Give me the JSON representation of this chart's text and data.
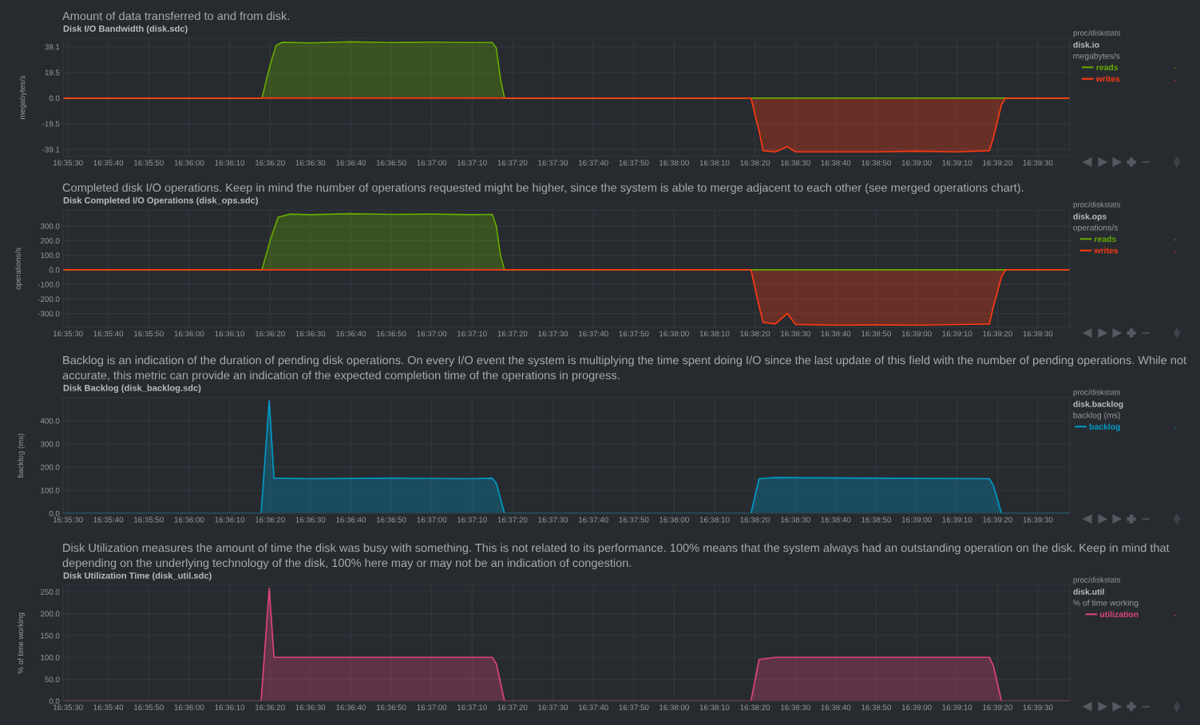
{
  "chart_data": [
    {
      "type": "area",
      "subtitle": "Amount of data transferred to and from disk.",
      "title": "Disk I/O Bandwidth (disk.sdc)",
      "ylabel": "megabytes/s",
      "legend_title": "megabytes/s",
      "legend": "right",
      "grid": true,
      "annotations": [
        "proc/diskstats",
        "disk.io",
        "-",
        "-"
      ],
      "xlim": [
        16.59133,
        16.66053
      ],
      "ylim": [
        -44.5,
        45.5
      ],
      "yticks": [
        {
          "value": 39.1,
          "label": "39.1"
        },
        {
          "value": 19.5,
          "label": "19.5"
        },
        {
          "value": 0,
          "label": "0.0"
        },
        {
          "value": -19.5,
          "label": "-19.5"
        },
        {
          "value": -39.1,
          "label": "-39.1"
        }
      ],
      "xticks": [
        {
          "value": 16.59167,
          "label": "16:35:30"
        },
        {
          "value": 16.59444,
          "label": "16:35:40"
        },
        {
          "value": 16.59722,
          "label": "16:35:50"
        },
        {
          "value": 16.6,
          "label": "16:36:00"
        },
        {
          "value": 16.60278,
          "label": "16:36:10"
        },
        {
          "value": 16.60556,
          "label": "16:36:20"
        },
        {
          "value": 16.60833,
          "label": "16:36:30"
        },
        {
          "value": 16.61111,
          "label": "16:36:40"
        },
        {
          "value": 16.61389,
          "label": "16:36:50"
        },
        {
          "value": 16.61667,
          "label": "16:37:00"
        },
        {
          "value": 16.61944,
          "label": "16:37:10"
        },
        {
          "value": 16.62222,
          "label": "16:37:20"
        },
        {
          "value": 16.625,
          "label": "16:37:30"
        },
        {
          "value": 16.62778,
          "label": "16:37:40"
        },
        {
          "value": 16.63056,
          "label": "16:37:50"
        },
        {
          "value": 16.63333,
          "label": "16:38:00"
        },
        {
          "value": 16.63611,
          "label": "16:38:10"
        },
        {
          "value": 16.63889,
          "label": "16:38:20"
        },
        {
          "value": 16.64167,
          "label": "16:38:30"
        },
        {
          "value": 16.64444,
          "label": "16:38:40"
        },
        {
          "value": 16.64722,
          "label": "16:38:50"
        },
        {
          "value": 16.65,
          "label": "16:39:00"
        },
        {
          "value": 16.65278,
          "label": "16:39:10"
        },
        {
          "value": 16.65556,
          "label": "16:39:20"
        },
        {
          "value": 16.65833,
          "label": "16:39:30"
        }
      ],
      "series": [
        {
          "name": "reads",
          "color": "#66aa00",
          "x": [
            16.59133,
            16.605,
            16.60556,
            16.60597,
            16.60639,
            16.60833,
            16.61111,
            16.61389,
            16.61667,
            16.61944,
            16.62083,
            16.62111,
            16.62139,
            16.62167,
            16.66053
          ],
          "values": [
            0,
            0,
            25,
            40,
            42.5,
            42,
            42.8,
            42.3,
            42.6,
            42.3,
            42.3,
            38,
            15,
            0,
            0
          ]
        },
        {
          "name": "writes",
          "color": "#fe3912",
          "x": [
            16.59133,
            16.63861,
            16.63917,
            16.63944,
            16.64028,
            16.64111,
            16.64167,
            16.64444,
            16.64722,
            16.65,
            16.65278,
            16.655,
            16.65528,
            16.65583,
            16.65611,
            16.66053
          ],
          "values": [
            0,
            0,
            -25,
            -40,
            -41,
            -37,
            -41,
            -41,
            -41,
            -40.5,
            -41,
            -40,
            -30,
            -5,
            0,
            0
          ]
        }
      ]
    },
    {
      "type": "area",
      "subtitle": "Completed disk I/O operations. Keep in mind the number of operations requested might be higher, since the system is able to merge adjacent to each other (see merged operations chart).",
      "title": "Disk Completed I/O Operations (disk_ops.sdc)",
      "ylabel": "operations/s",
      "legend_title": "operations/s",
      "legend": "right",
      "grid": true,
      "annotations": [
        "proc/diskstats",
        "disk.ops",
        "-",
        "-"
      ],
      "xlim": [
        16.59133,
        16.66053
      ],
      "ylim": [
        -395,
        410
      ],
      "yticks": [
        {
          "value": 300,
          "label": "300.0"
        },
        {
          "value": 200,
          "label": "200.0"
        },
        {
          "value": 100,
          "label": "100.0"
        },
        {
          "value": 0,
          "label": "0.0"
        },
        {
          "value": -100,
          "label": "-100.0"
        },
        {
          "value": -200,
          "label": "-200.0"
        },
        {
          "value": -300,
          "label": "-300.0"
        }
      ],
      "xticks": [
        {
          "value": 16.59167,
          "label": "16:35:30"
        },
        {
          "value": 16.59444,
          "label": "16:35:40"
        },
        {
          "value": 16.59722,
          "label": "16:35:50"
        },
        {
          "value": 16.6,
          "label": "16:36:00"
        },
        {
          "value": 16.60278,
          "label": "16:36:10"
        },
        {
          "value": 16.60556,
          "label": "16:36:20"
        },
        {
          "value": 16.60833,
          "label": "16:36:30"
        },
        {
          "value": 16.61111,
          "label": "16:36:40"
        },
        {
          "value": 16.61389,
          "label": "16:36:50"
        },
        {
          "value": 16.61667,
          "label": "16:37:00"
        },
        {
          "value": 16.61944,
          "label": "16:37:10"
        },
        {
          "value": 16.62222,
          "label": "16:37:20"
        },
        {
          "value": 16.625,
          "label": "16:37:30"
        },
        {
          "value": 16.62778,
          "label": "16:37:40"
        },
        {
          "value": 16.63056,
          "label": "16:37:50"
        },
        {
          "value": 16.63333,
          "label": "16:38:00"
        },
        {
          "value": 16.63611,
          "label": "16:38:10"
        },
        {
          "value": 16.63889,
          "label": "16:38:20"
        },
        {
          "value": 16.64167,
          "label": "16:38:30"
        },
        {
          "value": 16.64444,
          "label": "16:38:40"
        },
        {
          "value": 16.64722,
          "label": "16:38:50"
        },
        {
          "value": 16.65,
          "label": "16:39:00"
        },
        {
          "value": 16.65278,
          "label": "16:39:10"
        },
        {
          "value": 16.65556,
          "label": "16:39:20"
        },
        {
          "value": 16.65833,
          "label": "16:39:30"
        }
      ],
      "series": [
        {
          "name": "reads",
          "color": "#66aa00",
          "x": [
            16.59133,
            16.605,
            16.60556,
            16.60611,
            16.60694,
            16.60833,
            16.61111,
            16.61389,
            16.61667,
            16.61944,
            16.62083,
            16.62111,
            16.62139,
            16.62167,
            16.66053
          ],
          "values": [
            0,
            0,
            200,
            360,
            382,
            378,
            385,
            380,
            382,
            378,
            380,
            300,
            100,
            0,
            0
          ]
        },
        {
          "name": "writes",
          "color": "#fe3912",
          "x": [
            16.59133,
            16.63861,
            16.63917,
            16.63944,
            16.64028,
            16.64111,
            16.64167,
            16.64444,
            16.64722,
            16.65,
            16.65278,
            16.655,
            16.65528,
            16.65583,
            16.65611,
            16.66053
          ],
          "values": [
            0,
            0,
            -250,
            -360,
            -372,
            -300,
            -375,
            -380,
            -378,
            -380,
            -376,
            -372,
            -250,
            -50,
            0,
            0
          ]
        }
      ]
    },
    {
      "type": "area",
      "subtitle": "Backlog is an indication of the duration of pending disk operations. On every I/O event the system is multiplying the time spent doing I/O since the last update of this field with the number of pending operations. While not accurate, this metric can provide an indication of the expected completion time of the operations in progress.",
      "title": "Disk Backlog (disk_backlog.sdc)",
      "ylabel": "backlog (ms)",
      "legend_title": "backlog (ms)",
      "legend": "right",
      "grid": true,
      "annotations": [
        "proc/diskstats",
        "disk.backlog",
        "-"
      ],
      "xlim": [
        16.59133,
        16.66053
      ],
      "ylim": [
        0,
        500
      ],
      "yticks": [
        {
          "value": 0,
          "label": "0.0"
        },
        {
          "value": 100,
          "label": "100.0"
        },
        {
          "value": 200,
          "label": "200.0"
        },
        {
          "value": 300,
          "label": "300.0"
        },
        {
          "value": 400,
          "label": "400.0"
        }
      ],
      "xticks": [
        {
          "value": 16.59167,
          "label": "16:35:30"
        },
        {
          "value": 16.59444,
          "label": "16:35:40"
        },
        {
          "value": 16.59722,
          "label": "16:35:50"
        },
        {
          "value": 16.6,
          "label": "16:36:00"
        },
        {
          "value": 16.60278,
          "label": "16:36:10"
        },
        {
          "value": 16.60556,
          "label": "16:36:20"
        },
        {
          "value": 16.60833,
          "label": "16:36:30"
        },
        {
          "value": 16.61111,
          "label": "16:36:40"
        },
        {
          "value": 16.61389,
          "label": "16:36:50"
        },
        {
          "value": 16.61667,
          "label": "16:37:00"
        },
        {
          "value": 16.61944,
          "label": "16:37:10"
        },
        {
          "value": 16.62222,
          "label": "16:37:20"
        },
        {
          "value": 16.625,
          "label": "16:37:30"
        },
        {
          "value": 16.62778,
          "label": "16:37:40"
        },
        {
          "value": 16.63056,
          "label": "16:37:50"
        },
        {
          "value": 16.63333,
          "label": "16:38:00"
        },
        {
          "value": 16.63611,
          "label": "16:38:10"
        },
        {
          "value": 16.63889,
          "label": "16:38:20"
        },
        {
          "value": 16.64167,
          "label": "16:38:30"
        },
        {
          "value": 16.64444,
          "label": "16:38:40"
        },
        {
          "value": 16.64722,
          "label": "16:38:50"
        },
        {
          "value": 16.65,
          "label": "16:39:00"
        },
        {
          "value": 16.65278,
          "label": "16:39:10"
        },
        {
          "value": 16.65556,
          "label": "16:39:20"
        },
        {
          "value": 16.65833,
          "label": "16:39:30"
        }
      ],
      "series": [
        {
          "name": "backlog",
          "color": "#0099c6",
          "x": [
            16.59133,
            16.60494,
            16.6055,
            16.60583,
            16.60833,
            16.61389,
            16.61944,
            16.62083,
            16.62111,
            16.62167,
            16.63861,
            16.63917,
            16.64028,
            16.64722,
            16.655,
            16.65528,
            16.65583,
            16.66053
          ],
          "values": [
            0,
            0,
            486,
            152,
            150,
            152,
            150,
            152,
            130,
            0,
            0,
            150,
            155,
            152,
            150,
            120,
            0,
            0
          ]
        }
      ]
    },
    {
      "type": "area",
      "subtitle": "Disk Utilization measures the amount of time the disk was busy with something. This is not related to its performance. 100% means that the system always had an outstanding operation on the disk. Keep in mind that depending on the underlying technology of the disk, 100% here may or may not be an indication of congestion.",
      "title": "Disk Utilization Time (disk_util.sdc)",
      "ylabel": "% of time working",
      "legend_title": "% of time working",
      "legend": "right",
      "grid": true,
      "annotations": [
        "proc/diskstats",
        "disk.util",
        "-"
      ],
      "xlim": [
        16.59133,
        16.66053
      ],
      "ylim": [
        0,
        265
      ],
      "yticks": [
        {
          "value": 0,
          "label": "0.0"
        },
        {
          "value": 50,
          "label": "50.0"
        },
        {
          "value": 100,
          "label": "100.0"
        },
        {
          "value": 150,
          "label": "150.0"
        },
        {
          "value": 200,
          "label": "200.0"
        },
        {
          "value": 250,
          "label": "250.0"
        }
      ],
      "xticks": [
        {
          "value": 16.59167,
          "label": "16:35:30"
        },
        {
          "value": 16.59444,
          "label": "16:35:40"
        },
        {
          "value": 16.59722,
          "label": "16:35:50"
        },
        {
          "value": 16.6,
          "label": "16:36:00"
        },
        {
          "value": 16.60278,
          "label": "16:36:10"
        },
        {
          "value": 16.60556,
          "label": "16:36:20"
        },
        {
          "value": 16.60833,
          "label": "16:36:30"
        },
        {
          "value": 16.61111,
          "label": "16:36:40"
        },
        {
          "value": 16.61389,
          "label": "16:36:50"
        },
        {
          "value": 16.61667,
          "label": "16:37:00"
        },
        {
          "value": 16.61944,
          "label": "16:37:10"
        },
        {
          "value": 16.62222,
          "label": "16:37:20"
        },
        {
          "value": 16.625,
          "label": "16:37:30"
        },
        {
          "value": 16.62778,
          "label": "16:37:40"
        },
        {
          "value": 16.63056,
          "label": "16:37:50"
        },
        {
          "value": 16.63333,
          "label": "16:38:00"
        },
        {
          "value": 16.63611,
          "label": "16:38:10"
        },
        {
          "value": 16.63889,
          "label": "16:38:20"
        },
        {
          "value": 16.64167,
          "label": "16:38:30"
        },
        {
          "value": 16.64444,
          "label": "16:38:40"
        },
        {
          "value": 16.64722,
          "label": "16:38:50"
        },
        {
          "value": 16.65,
          "label": "16:39:00"
        },
        {
          "value": 16.65278,
          "label": "16:39:10"
        },
        {
          "value": 16.65556,
          "label": "16:39:20"
        },
        {
          "value": 16.65833,
          "label": "16:39:30"
        }
      ],
      "series": [
        {
          "name": "utilization",
          "color": "#dd4477",
          "x": [
            16.59133,
            16.60494,
            16.6055,
            16.60583,
            16.60833,
            16.61389,
            16.61944,
            16.62083,
            16.62111,
            16.62167,
            16.63861,
            16.63917,
            16.64028,
            16.64722,
            16.655,
            16.65528,
            16.65583,
            16.66053
          ],
          "values": [
            0,
            0,
            257,
            100,
            100,
            100,
            100,
            100,
            85,
            0,
            0,
            95,
            100,
            100,
            100,
            80,
            0,
            0
          ]
        }
      ]
    }
  ]
}
